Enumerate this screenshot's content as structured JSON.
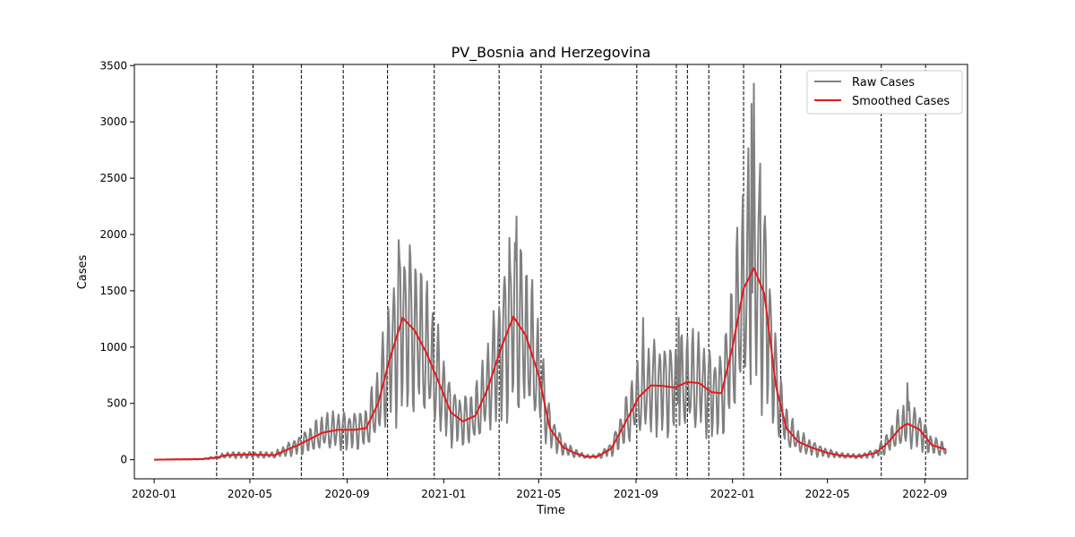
{
  "chart_data": {
    "type": "line",
    "title": "PV_Bosnia and Herzegovina",
    "xlabel": "Time",
    "ylabel": "Cases",
    "xlim": [
      "2019-12-07",
      "2022-10-25"
    ],
    "ylim": [
      -170,
      3510
    ],
    "x_ticks": [
      {
        "date": "2020-01-01",
        "label": "2020-01"
      },
      {
        "date": "2020-05-01",
        "label": "2020-05"
      },
      {
        "date": "2020-09-01",
        "label": "2020-09"
      },
      {
        "date": "2021-01-01",
        "label": "2021-01"
      },
      {
        "date": "2021-05-01",
        "label": "2021-05"
      },
      {
        "date": "2021-09-01",
        "label": "2021-09"
      },
      {
        "date": "2022-01-01",
        "label": "2022-01"
      },
      {
        "date": "2022-05-01",
        "label": "2022-05"
      },
      {
        "date": "2022-09-01",
        "label": "2022-09"
      }
    ],
    "y_ticks": [
      0,
      500,
      1000,
      1500,
      2000,
      2500,
      3000,
      3500
    ],
    "grid": false,
    "legend": {
      "position": "top-right",
      "entries": [
        "Raw Cases",
        "Smoothed Cases"
      ]
    },
    "colors": {
      "raw": "#808080",
      "smoothed": "#e41a1c",
      "breakpoints": "#000000"
    },
    "vertical_lines": [
      "2020-03-20",
      "2020-05-05",
      "2020-07-05",
      "2020-08-27",
      "2020-10-22",
      "2020-12-20",
      "2021-03-12",
      "2021-05-04",
      "2021-09-02",
      "2021-10-22",
      "2021-11-05",
      "2021-12-02",
      "2022-01-15",
      "2022-03-03",
      "2022-07-08",
      "2022-09-02"
    ],
    "series": [
      {
        "name": "Raw Cases",
        "kind": "daily",
        "weekly_swing": 0.45,
        "peak_points": [
          [
            "2020-11-05",
            1950
          ],
          [
            "2021-03-25",
            1970
          ],
          [
            "2021-04-03",
            2160
          ],
          [
            "2021-09-10",
            1260
          ],
          [
            "2021-10-25",
            1260
          ],
          [
            "2022-01-25",
            3160
          ],
          [
            "2022-01-28",
            3340
          ],
          [
            "2022-02-05",
            2630
          ],
          [
            "2022-08-10",
            680
          ]
        ]
      },
      {
        "name": "Smoothed Cases",
        "points": [
          [
            "2020-01-01",
            0
          ],
          [
            "2020-03-01",
            5
          ],
          [
            "2020-03-20",
            20
          ],
          [
            "2020-04-01",
            40
          ],
          [
            "2020-05-01",
            45
          ],
          [
            "2020-06-01",
            40
          ],
          [
            "2020-07-01",
            130
          ],
          [
            "2020-08-01",
            240
          ],
          [
            "2020-08-20",
            265
          ],
          [
            "2020-09-10",
            265
          ],
          [
            "2020-09-25",
            280
          ],
          [
            "2020-10-10",
            500
          ],
          [
            "2020-10-25",
            900
          ],
          [
            "2020-11-10",
            1260
          ],
          [
            "2020-11-25",
            1150
          ],
          [
            "2020-12-10",
            950
          ],
          [
            "2020-12-25",
            700
          ],
          [
            "2021-01-10",
            420
          ],
          [
            "2021-01-25",
            340
          ],
          [
            "2021-02-10",
            390
          ],
          [
            "2021-02-25",
            620
          ],
          [
            "2021-03-15",
            1000
          ],
          [
            "2021-03-30",
            1270
          ],
          [
            "2021-04-15",
            1100
          ],
          [
            "2021-05-01",
            750
          ],
          [
            "2021-05-15",
            280
          ],
          [
            "2021-06-01",
            110
          ],
          [
            "2021-06-15",
            60
          ],
          [
            "2021-07-01",
            25
          ],
          [
            "2021-07-15",
            30
          ],
          [
            "2021-08-01",
            100
          ],
          [
            "2021-08-20",
            350
          ],
          [
            "2021-09-05",
            560
          ],
          [
            "2021-09-20",
            660
          ],
          [
            "2021-10-05",
            655
          ],
          [
            "2021-10-20",
            640
          ],
          [
            "2021-11-05",
            690
          ],
          [
            "2021-11-20",
            680
          ],
          [
            "2021-12-05",
            600
          ],
          [
            "2021-12-18",
            590
          ],
          [
            "2022-01-01",
            1000
          ],
          [
            "2022-01-15",
            1520
          ],
          [
            "2022-01-28",
            1700
          ],
          [
            "2022-02-10",
            1480
          ],
          [
            "2022-02-25",
            650
          ],
          [
            "2022-03-10",
            280
          ],
          [
            "2022-03-25",
            160
          ],
          [
            "2022-04-10",
            110
          ],
          [
            "2022-05-01",
            60
          ],
          [
            "2022-05-20",
            35
          ],
          [
            "2022-06-10",
            30
          ],
          [
            "2022-07-01",
            60
          ],
          [
            "2022-07-15",
            140
          ],
          [
            "2022-08-01",
            280
          ],
          [
            "2022-08-10",
            320
          ],
          [
            "2022-08-25",
            270
          ],
          [
            "2022-09-10",
            130
          ],
          [
            "2022-09-28",
            90
          ]
        ]
      }
    ]
  }
}
